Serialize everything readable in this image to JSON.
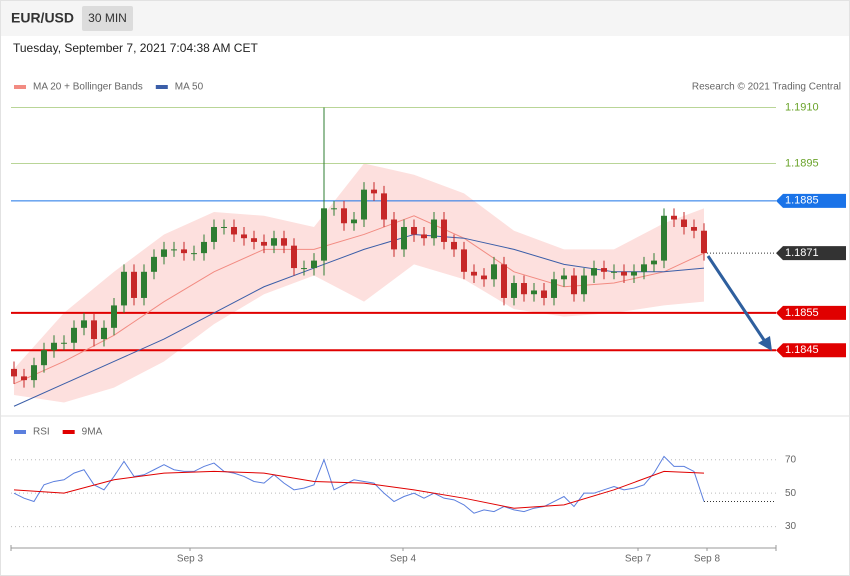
{
  "header": {
    "symbol": "EUR/USD",
    "interval": "30 MIN",
    "timestamp": "Tuesday, September 7, 2021 7:04:38 AM CET"
  },
  "chart_data": [
    {
      "type": "candlestick",
      "source": "Research © 2021 Trading Central",
      "up_color": "#2e7d32",
      "down_color": "#c62828",
      "open": [
        1.184,
        1.1838,
        1.1837,
        1.1841,
        1.1845,
        1.1847,
        1.1847,
        1.1851,
        1.1853,
        1.1848,
        1.1851,
        1.1857,
        1.1866,
        1.1859,
        1.1866,
        1.187,
        1.1872,
        1.1872,
        1.1871,
        1.1871,
        1.1874,
        1.1878,
        1.1878,
        1.1876,
        1.1875,
        1.1874,
        1.1873,
        1.1875,
        1.1873,
        1.1867,
        1.1867,
        1.1869,
        1.1883,
        1.1883,
        1.1879,
        1.188,
        1.1888,
        1.1887,
        1.188,
        1.1872,
        1.1878,
        1.1876,
        1.1875,
        1.188,
        1.1874,
        1.1872,
        1.1866,
        1.1865,
        1.1864,
        1.1868,
        1.1859,
        1.1863,
        1.186,
        1.1861,
        1.1859,
        1.1864,
        1.1865,
        1.186,
        1.1865,
        1.1867,
        1.1866,
        1.1866,
        1.1865,
        1.1866,
        1.1868,
        1.1869,
        1.1881,
        1.188,
        1.1878,
        1.1877
      ],
      "high": [
        1.1842,
        1.184,
        1.1843,
        1.1847,
        1.1849,
        1.1849,
        1.1853,
        1.1855,
        1.1855,
        1.1853,
        1.1859,
        1.1868,
        1.1868,
        1.1868,
        1.1872,
        1.1874,
        1.1874,
        1.1874,
        1.1873,
        1.1876,
        1.188,
        1.188,
        1.188,
        1.1878,
        1.1877,
        1.1876,
        1.1877,
        1.1877,
        1.1875,
        1.1869,
        1.1871,
        1.191,
        1.1885,
        1.1885,
        1.1882,
        1.189,
        1.189,
        1.1889,
        1.1882,
        1.188,
        1.188,
        1.1878,
        1.1882,
        1.1882,
        1.1876,
        1.1874,
        1.1868,
        1.1867,
        1.187,
        1.187,
        1.1865,
        1.1865,
        1.1863,
        1.1863,
        1.1866,
        1.1867,
        1.1867,
        1.1867,
        1.1869,
        1.1869,
        1.1868,
        1.1868,
        1.1868,
        1.187,
        1.1871,
        1.1883,
        1.1883,
        1.1882,
        1.188,
        1.1879
      ],
      "low": [
        1.1836,
        1.1835,
        1.1835,
        1.1839,
        1.1843,
        1.1845,
        1.1845,
        1.1849,
        1.1846,
        1.1846,
        1.1849,
        1.1855,
        1.1857,
        1.1857,
        1.1864,
        1.1868,
        1.187,
        1.1869,
        1.1869,
        1.1869,
        1.1872,
        1.1876,
        1.1874,
        1.1873,
        1.1872,
        1.1871,
        1.1871,
        1.1871,
        1.1865,
        1.1865,
        1.1865,
        1.1865,
        1.1881,
        1.1877,
        1.1877,
        1.1878,
        1.1885,
        1.1878,
        1.187,
        1.187,
        1.1874,
        1.1873,
        1.1873,
        1.1872,
        1.187,
        1.1864,
        1.1863,
        1.1862,
        1.1862,
        1.1857,
        1.1857,
        1.1858,
        1.1858,
        1.1857,
        1.1857,
        1.1862,
        1.1858,
        1.1858,
        1.1863,
        1.1864,
        1.1864,
        1.1863,
        1.1863,
        1.1864,
        1.1866,
        1.1867,
        1.1878,
        1.1876,
        1.1875,
        1.1869
      ],
      "close": [
        1.1838,
        1.1837,
        1.1841,
        1.1845,
        1.1847,
        1.1847,
        1.1851,
        1.1853,
        1.1848,
        1.1851,
        1.1857,
        1.1866,
        1.1859,
        1.1866,
        1.187,
        1.1872,
        1.1872,
        1.1871,
        1.1871,
        1.1874,
        1.1878,
        1.1878,
        1.1876,
        1.1875,
        1.1874,
        1.1873,
        1.1875,
        1.1873,
        1.1867,
        1.1867,
        1.1869,
        1.1883,
        1.1883,
        1.1879,
        1.188,
        1.1888,
        1.1887,
        1.188,
        1.1872,
        1.1878,
        1.1876,
        1.1875,
        1.188,
        1.1874,
        1.1872,
        1.1866,
        1.1865,
        1.1864,
        1.1868,
        1.1859,
        1.1863,
        1.186,
        1.1861,
        1.1859,
        1.1864,
        1.1865,
        1.186,
        1.1865,
        1.1867,
        1.1866,
        1.1866,
        1.1865,
        1.1866,
        1.1868,
        1.1869,
        1.1881,
        1.188,
        1.1878,
        1.1877,
        1.1871
      ],
      "series": [
        {
          "name": "MA 20 + Bollinger Bands",
          "color": "#f28b82",
          "band_color": "#fde0de",
          "x": [
            0,
            5,
            10,
            15,
            20,
            25,
            30,
            35,
            40,
            45,
            50,
            55,
            60,
            65,
            69
          ],
          "values": [
            1.1836,
            1.1842,
            1.1849,
            1.1858,
            1.1866,
            1.1872,
            1.1872,
            1.1876,
            1.1881,
            1.1875,
            1.1866,
            1.1862,
            1.1863,
            1.1866,
            1.1871
          ],
          "upper": [
            1.184,
            1.1855,
            1.1866,
            1.1876,
            1.1882,
            1.1881,
            1.1878,
            1.1895,
            1.1892,
            1.1887,
            1.1877,
            1.1872,
            1.1872,
            1.1879,
            1.1883
          ],
          "lower": [
            1.1833,
            1.1831,
            1.1835,
            1.1842,
            1.1852,
            1.186,
            1.1865,
            1.1858,
            1.1868,
            1.1864,
            1.1856,
            1.1854,
            1.1855,
            1.1857,
            1.1858
          ]
        },
        {
          "name": "MA 50",
          "color": "#3b5ea8",
          "x": [
            0,
            5,
            10,
            15,
            20,
            25,
            30,
            35,
            40,
            45,
            50,
            55,
            60,
            65,
            69
          ],
          "values": [
            1.183,
            1.1836,
            1.1842,
            1.1848,
            1.1855,
            1.1862,
            1.1867,
            1.1872,
            1.1876,
            1.1875,
            1.1872,
            1.1868,
            1.1866,
            1.1866,
            1.1867
          ]
        }
      ],
      "levels": [
        {
          "value": 1.191,
          "label": "1.1910",
          "color": "#6aa32a",
          "line_color": "#b9d597",
          "tag": false,
          "line": "solid"
        },
        {
          "value": 1.1895,
          "label": "1.1895",
          "color": "#6aa32a",
          "line_color": "#b9d597",
          "tag": false,
          "line": "solid"
        },
        {
          "value": 1.1885,
          "label": "1.1885",
          "color": "#1a73e8",
          "line_color": "#1a73e8",
          "tag": true,
          "line": "solid"
        },
        {
          "value": 1.1871,
          "label": "1.1871",
          "color": "#333333",
          "line_color": "#333333",
          "tag": true,
          "line": "dotted"
        },
        {
          "value": 1.1855,
          "label": "1.1855",
          "color": "#e00000",
          "line_color": "#e00000",
          "tag": true,
          "line": "solid"
        },
        {
          "value": 1.1845,
          "label": "1.1845",
          "color": "#e00000",
          "line_color": "#e00000",
          "tag": true,
          "line": "solid"
        }
      ],
      "ylim": [
        1.1829,
        1.1912
      ],
      "xlim": [
        -0.3,
        76.2
      ],
      "xticks": [
        {
          "value": 17.6,
          "label": "Sep 3"
        },
        {
          "value": 38.9,
          "label": "Sep 4"
        },
        {
          "value": 62.4,
          "label": "Sep 7"
        },
        {
          "value": 69.3,
          "label": "Sep 8"
        }
      ]
    },
    {
      "type": "line",
      "series": [
        {
          "name": "RSI",
          "color": "#5b7fde",
          "values": [
            50,
            47,
            45,
            55,
            57,
            58,
            62,
            64,
            55,
            52,
            60,
            69,
            60,
            61,
            64,
            67,
            64,
            63,
            63,
            66,
            68,
            63,
            62,
            60,
            57,
            56,
            61,
            56,
            52,
            53,
            55,
            70,
            52,
            55,
            58,
            57,
            56,
            50,
            45,
            48,
            50,
            47,
            50,
            47,
            46,
            43,
            38,
            40,
            39,
            42,
            40,
            39,
            41,
            42,
            45,
            48,
            42,
            50,
            50,
            52,
            54,
            52,
            53,
            55,
            62,
            72,
            66,
            66,
            63,
            45
          ]
        },
        {
          "name": "9MA",
          "color": "#e00000",
          "x": [
            0,
            5,
            10,
            15,
            20,
            25,
            30,
            35,
            40,
            45,
            50,
            55,
            60,
            65,
            69
          ],
          "values": [
            52,
            50,
            58,
            62,
            63,
            62,
            57,
            56,
            52,
            47,
            41,
            43,
            52,
            63,
            62
          ]
        }
      ],
      "ylim": [
        19,
        80
      ],
      "yticks": [
        30,
        50,
        70
      ]
    }
  ]
}
